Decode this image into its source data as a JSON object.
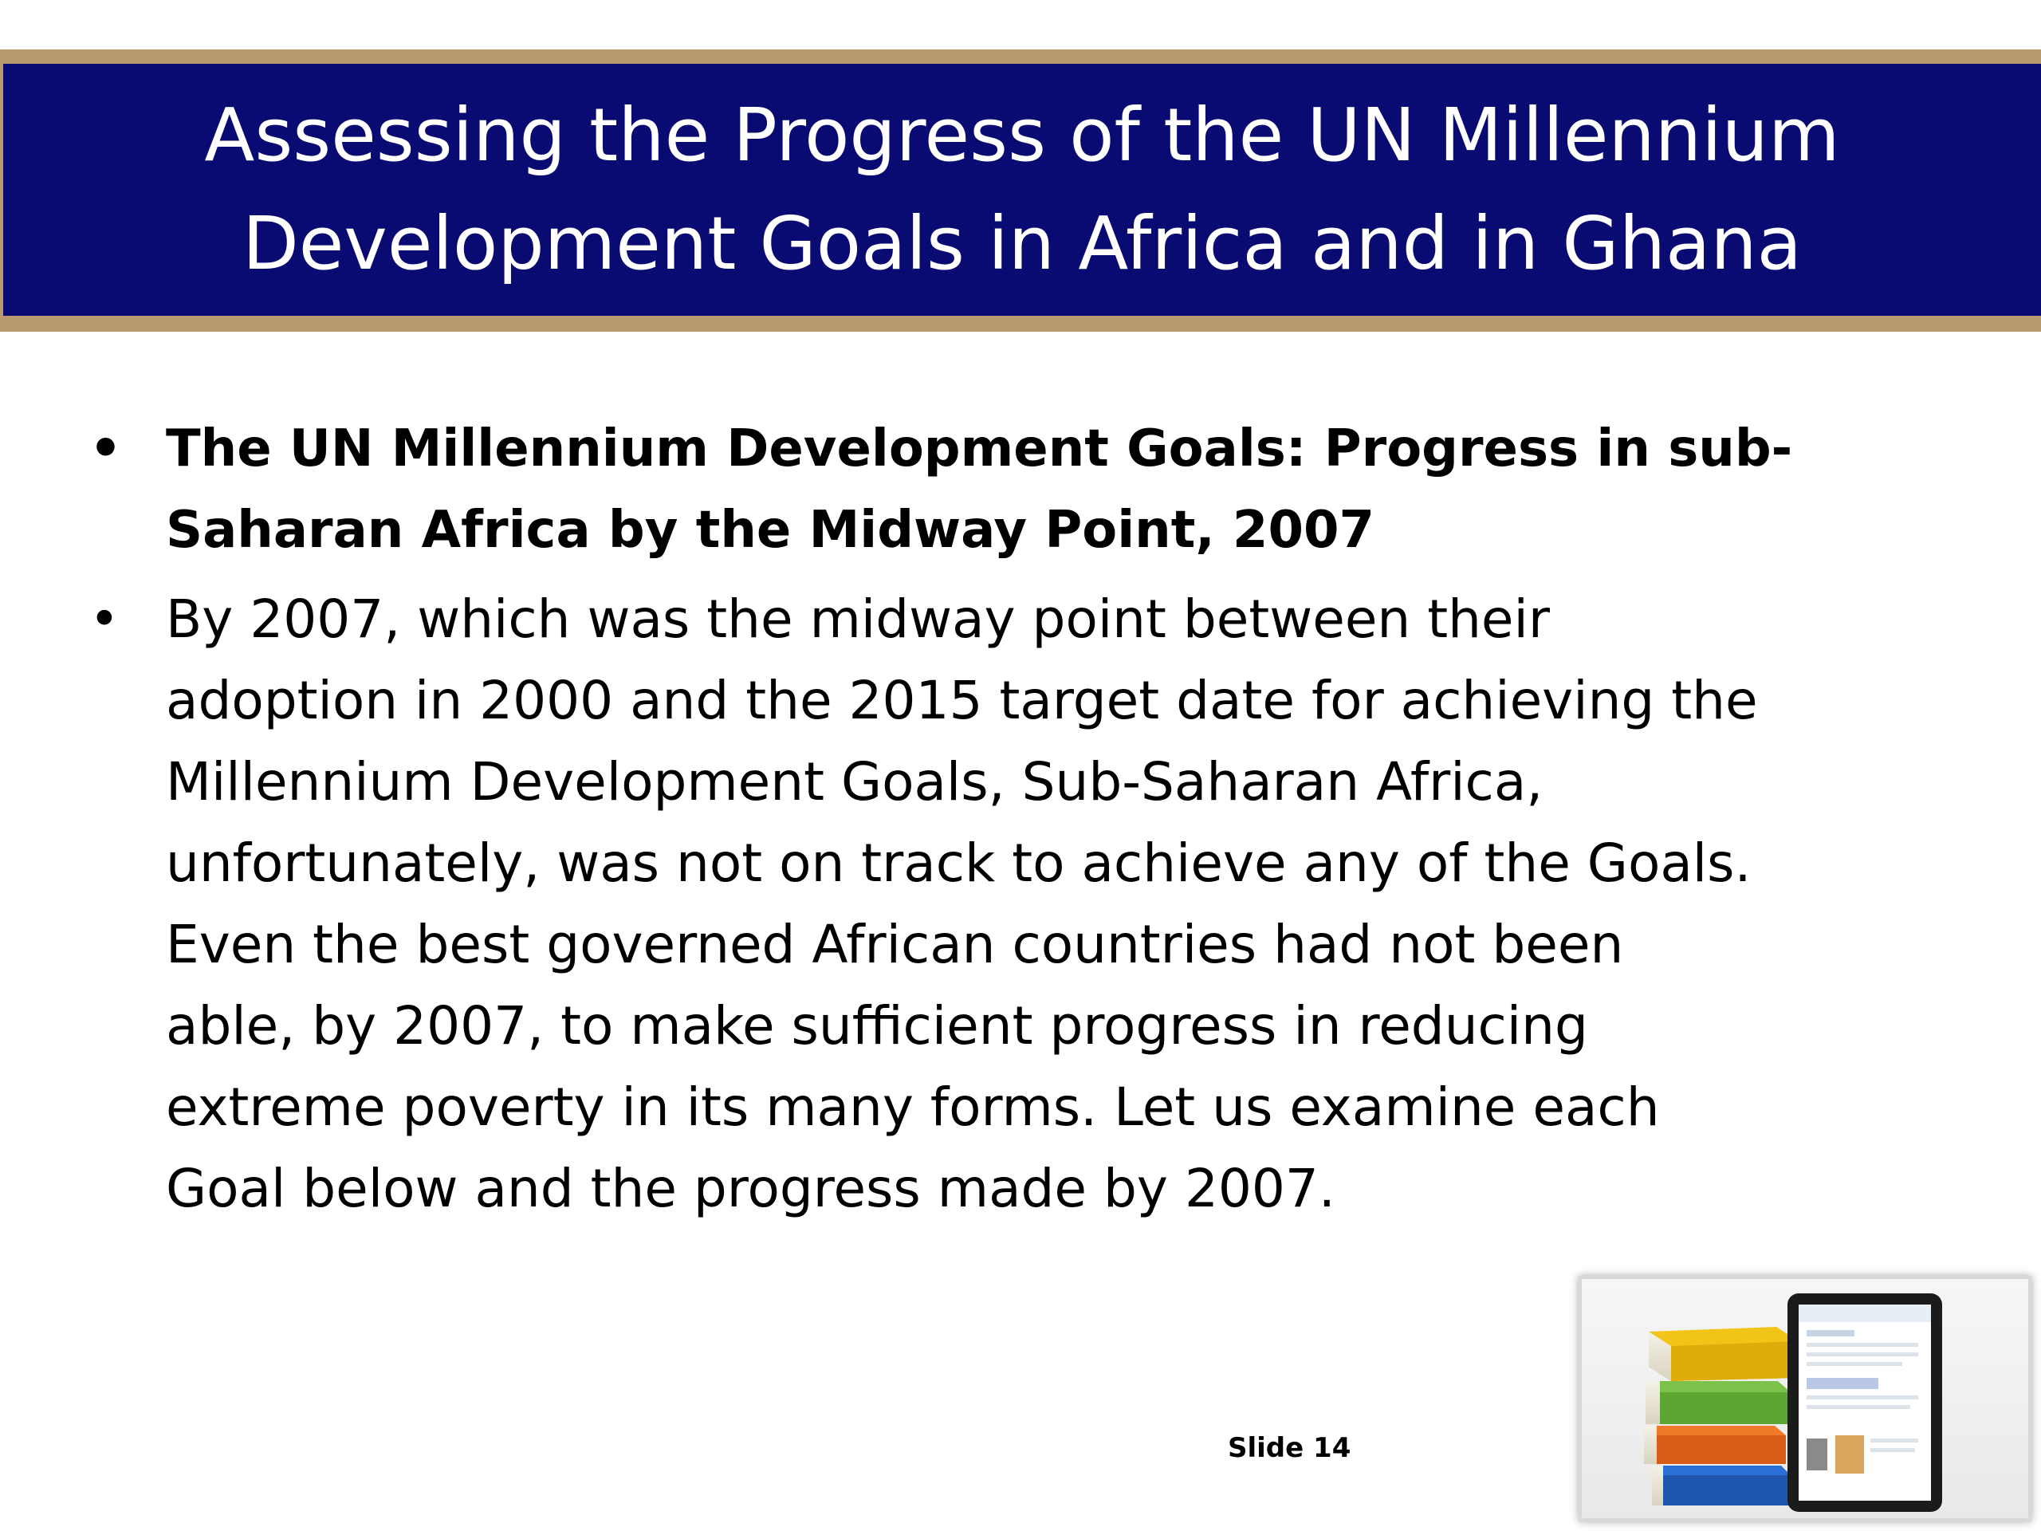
{
  "title": {
    "lines": [
      "Assessing the Progress of the UN Millennium",
      "Development Goals in Africa and in Ghana"
    ]
  },
  "bullets": {
    "heading": {
      "lines": [
        "The UN Millennium Development Goals: Progress in sub-",
        "Saharan Africa by the Midway Point, 2007"
      ]
    },
    "body": {
      "lines": [
        "By 2007, which was the midway point between their",
        "adoption in 2000 and the 2015 target date for achieving the",
        "Millennium Development Goals, Sub-Saharan Africa,",
        "unfortunately, was not on track to achieve any of the Goals.",
        "Even the best governed African countries had not been",
        "able, by 2007, to make sufficient progress in reducing",
        "extreme poverty in its many forms. Let us examine each",
        "Goal below and the progress made by 2007."
      ]
    },
    "bullet_symbol": "•"
  },
  "slide_number": "Slide 14",
  "colors": {
    "title_background": "#0a0a73",
    "title_border": "#b89a6e",
    "title_text": "#ffffff",
    "body_text": "#000000"
  },
  "thumbnail_icon": "books-and-tablet-icon"
}
